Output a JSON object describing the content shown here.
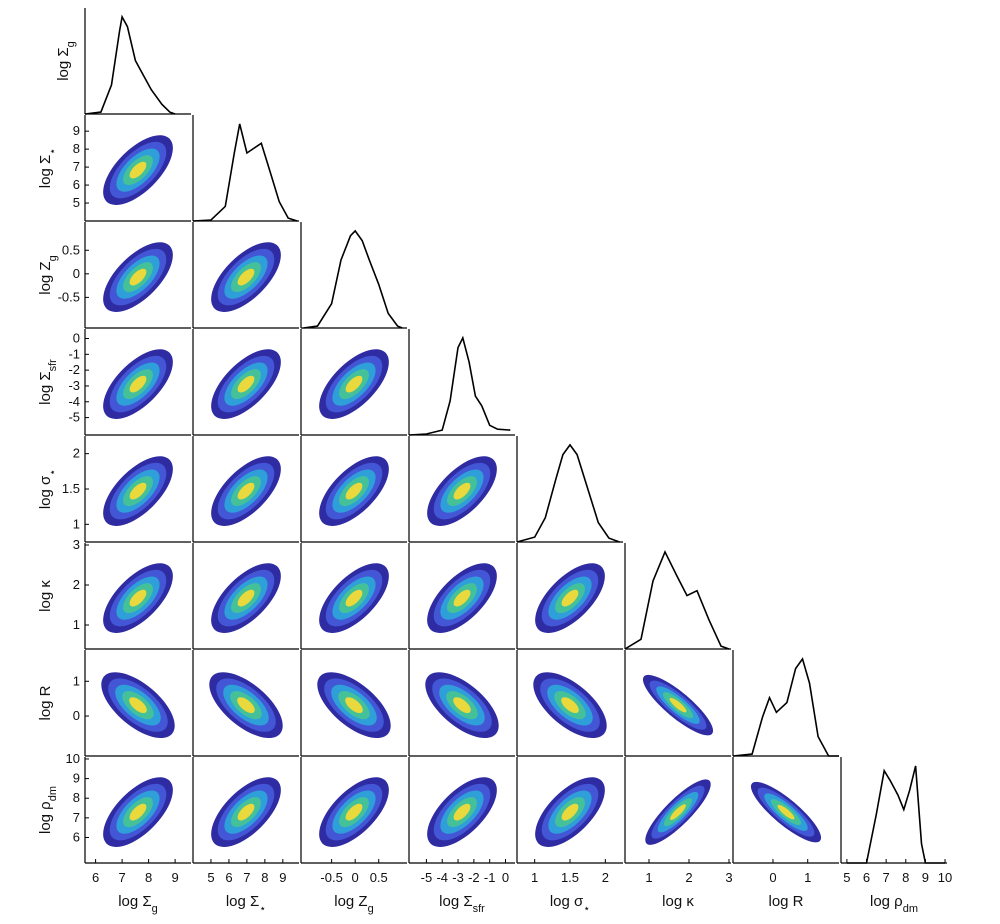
{
  "chart_data": {
    "type": "corner",
    "contour_colors": [
      "#2f2ba3",
      "#4356d6",
      "#2f9fd9",
      "#45c19a",
      "#e9d93c"
    ],
    "density_color": "#000000",
    "variables": [
      {
        "label": "log Σ",
        "label_sub": "g",
        "lim": [
          5.6,
          9.6
        ],
        "xticks": [
          6,
          7,
          8,
          9
        ],
        "yticks": [],
        "density": {
          "x": [
            5.6,
            6.2,
            6.6,
            6.9,
            7.0,
            7.2,
            7.5,
            7.8,
            8.1,
            8.5,
            8.8,
            9.0
          ],
          "values": [
            0,
            0.02,
            0.3,
            0.85,
            1,
            0.9,
            0.55,
            0.4,
            0.25,
            0.1,
            0.02,
            0
          ]
        }
      },
      {
        "label": "log Σ",
        "label_sub": "⋆",
        "lim": [
          4,
          9.9
        ],
        "xticks": [
          5,
          6,
          7,
          8,
          9
        ],
        "yticks": [
          5,
          6,
          7,
          8,
          9
        ],
        "density": {
          "x": [
            4,
            5,
            5.8,
            6.3,
            6.6,
            7,
            7.4,
            7.8,
            8.3,
            8.8,
            9.3,
            9.8
          ],
          "values": [
            0,
            0.01,
            0.15,
            0.7,
            1,
            0.7,
            0.75,
            0.8,
            0.5,
            0.2,
            0.03,
            0
          ]
        }
      },
      {
        "label": "log Z",
        "label_sub": "g",
        "lim": [
          -1.15,
          1.1
        ],
        "xticks": [
          -0.5,
          0,
          0.5
        ],
        "yticks": [
          -0.5,
          0,
          0.5
        ],
        "density": {
          "x": [
            -1.1,
            -0.8,
            -0.5,
            -0.3,
            -0.1,
            0,
            0.15,
            0.3,
            0.5,
            0.7,
            0.9,
            1.0
          ],
          "values": [
            0,
            0.02,
            0.25,
            0.7,
            0.95,
            1,
            0.9,
            0.7,
            0.45,
            0.15,
            0.02,
            0
          ]
        }
      },
      {
        "label": "log Σ",
        "label_sub": "sfr",
        "lim": [
          -6.1,
          0.6
        ],
        "xticks": [
          -5,
          -4,
          -3,
          -2,
          -1,
          0
        ],
        "yticks": [
          -5,
          -4,
          -3,
          -2,
          -1,
          0
        ],
        "density": {
          "x": [
            -6.1,
            -5,
            -4,
            -3.5,
            -3,
            -2.7,
            -2.3,
            -1.9,
            -1.5,
            -1,
            -0.5,
            0.3
          ],
          "values": [
            0,
            0.01,
            0.05,
            0.35,
            0.9,
            1,
            0.75,
            0.4,
            0.3,
            0.1,
            0.06,
            0.05
          ]
        }
      },
      {
        "label": "log σ",
        "label_sub": "⋆",
        "lim": [
          0.75,
          2.25
        ],
        "xticks": [
          1,
          1.5,
          2
        ],
        "yticks": [
          1,
          1.5,
          2
        ],
        "density": {
          "x": [
            0.75,
            1,
            1.15,
            1.3,
            1.4,
            1.5,
            1.6,
            1.75,
            1.9,
            2.05,
            2.2
          ],
          "values": [
            0,
            0.05,
            0.25,
            0.65,
            0.9,
            1,
            0.9,
            0.55,
            0.2,
            0.04,
            0
          ]
        }
      },
      {
        "label": "log κ",
        "lim": [
          0.4,
          3.05
        ],
        "xticks": [
          1,
          2,
          3
        ],
        "yticks": [
          1,
          2,
          3
        ],
        "density": {
          "x": [
            0.4,
            0.8,
            1.1,
            1.4,
            1.7,
            1.95,
            2.2,
            2.5,
            2.8,
            3
          ],
          "values": [
            0,
            0.1,
            0.7,
            1,
            0.75,
            0.55,
            0.6,
            0.3,
            0.03,
            0
          ]
        }
      },
      {
        "label": "log R",
        "lim": [
          -1.15,
          1.9
        ],
        "xticks": [
          0,
          1
        ],
        "yticks": [
          0,
          1
        ],
        "density": {
          "x": [
            -1.15,
            -0.6,
            -0.3,
            -0.1,
            0.1,
            0.4,
            0.65,
            0.85,
            1.05,
            1.3,
            1.6,
            1.9
          ],
          "values": [
            0,
            0.02,
            0.4,
            0.6,
            0.45,
            0.55,
            0.9,
            1,
            0.75,
            0.2,
            0,
            0
          ]
        }
      },
      {
        "label": "log ρ",
        "label_sub": "dm",
        "lim": [
          4.7,
          10.1
        ],
        "xticks": [
          5,
          6,
          7,
          8,
          9,
          10
        ],
        "yticks": [
          6,
          7,
          8,
          9,
          10
        ],
        "density": {
          "x": [
            5,
            6,
            6.5,
            6.9,
            7.2,
            7.6,
            7.9,
            8.2,
            8.5,
            8.8,
            9,
            10
          ],
          "values": [
            0,
            0,
            0.5,
            0.95,
            0.85,
            0.7,
            0.55,
            0.75,
            1,
            0.2,
            0,
            0
          ]
        }
      }
    ]
  }
}
